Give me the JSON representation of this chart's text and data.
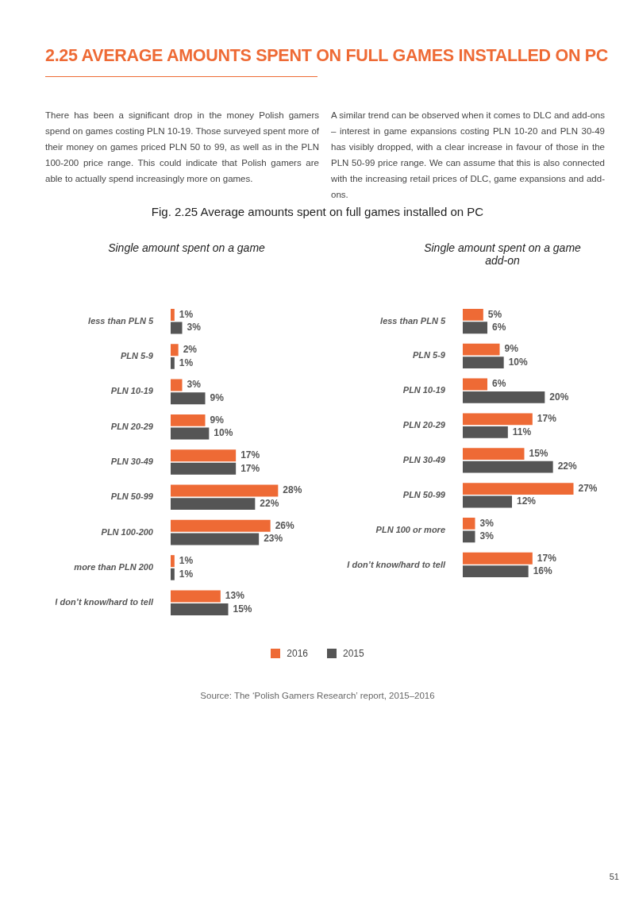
{
  "chart_data": [
    {
      "type": "bar",
      "orientation": "horizontal",
      "title": "Single amount spent on a game",
      "legend": "bottom",
      "annotations": [
        "2.25 AVERAGE AMOUNTS SPENT ON FULL GAMES INSTALLED ON PC",
        "There has been a significant drop in the money Polish gamers spend on games costing PLN 10-19. Those surveyed spent more of their money on games priced PLN 50 to 99, as well as in the PLN 100-200 price range. This could indicate that Polish gamers are able to actually spend increasingly more on games.",
        "A similar trend can be observed when it comes to DLC and add-ons – interest in game expansions costing PLN 10-20 and PLN 30-49 has visibly dropped, with a clear increase in favour of those in the PLN 50-99 price range. We can assume that this is also connected with the increasing retail prices of DLC, game expansions and add-ons.",
        "Fig. 2.25 Average amounts spent on full games installed on PC",
        "Source: The ‘Polish Gamers Research’ report, 2015–2016",
        "51"
      ],
      "categories": [
        "less than PLN 5",
        "PLN 5-9",
        "PLN 10-19",
        "PLN 20-29",
        "PLN 30-49",
        "PLN 50-99",
        "PLN 100-200",
        "more than PLN 200",
        "I don’t know/hard to tell"
      ],
      "series": [
        {
          "name": "2016",
          "color": "#ee6a35",
          "values": [
            1,
            2,
            3,
            9,
            17,
            28,
            26,
            1,
            13
          ],
          "value_labels": [
            "1%",
            "2%",
            "3%",
            "9%",
            "17%",
            "28%",
            "26%",
            "1%",
            "13%"
          ]
        },
        {
          "name": "2015",
          "color": "#555555",
          "values": [
            3,
            1,
            9,
            10,
            17,
            22,
            23,
            1,
            15
          ],
          "value_labels": [
            "3%",
            "1%",
            "9%",
            "10%",
            "17%",
            "22%",
            "23%",
            "1%",
            "15%"
          ]
        }
      ]
    },
    {
      "type": "bar",
      "orientation": "horizontal",
      "title": "Single amount spent on a game add-on",
      "categories": [
        "less than PLN 5",
        "PLN 5-9",
        "PLN 10-19",
        "PLN 20-29",
        "PLN 30-49",
        "PLN 50-99",
        "PLN 100 or more",
        "I don’t know/hard to tell"
      ],
      "series": [
        {
          "name": "2016",
          "color": "#ee6a35",
          "values": [
            5,
            9,
            6,
            17,
            15,
            27,
            3,
            17
          ],
          "value_labels": [
            "5%",
            "9%",
            "6%",
            "17%",
            "15%",
            "27%",
            "3%",
            "17%"
          ]
        },
        {
          "name": "2015",
          "color": "#555555",
          "values": [
            6,
            10,
            20,
            11,
            22,
            12,
            3,
            16
          ],
          "value_labels": [
            "6%",
            "10%",
            "20%",
            "11%",
            "22%",
            "12%",
            "3%",
            "16%"
          ]
        }
      ]
    }
  ]
}
